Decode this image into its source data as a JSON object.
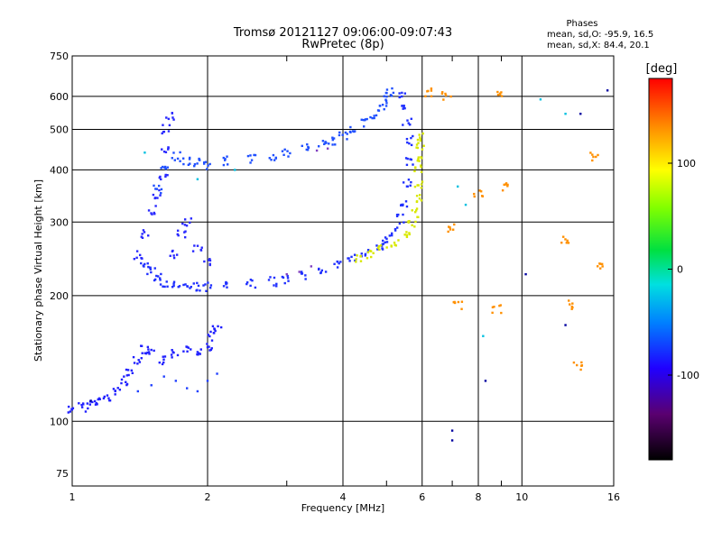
{
  "chart_data": {
    "type": "scatter",
    "title": "Tromsø 20121127 09:06:00-09:07:43",
    "subtitle": "RwPretec (8p)",
    "xlabel": "Frequency [MHz]",
    "ylabel": "Stationary phase Virtual Height [km]",
    "x_scale": "log",
    "y_scale": "log",
    "xlim": [
      1,
      16
    ],
    "ylim": [
      70,
      750
    ],
    "x_ticks": [
      1,
      2,
      4,
      6,
      8,
      10,
      16
    ],
    "x_minor_ticks": [
      3,
      5,
      7,
      9
    ],
    "y_ticks": [
      75,
      100,
      200,
      300,
      400,
      500,
      600,
      750
    ],
    "grid": true,
    "phases_box": {
      "title": "Phases",
      "o_line": "mean, sd,O: -95.9, 16.5",
      "x_line": "mean, sd,X:  84.4, 20.1"
    },
    "colorbar": {
      "label": "[deg]",
      "range": [
        -180,
        180
      ],
      "ticks": [
        -100,
        0,
        100
      ],
      "colormap": "rainbow (black-purple-blue-cyan-green-yellow-orange-red)"
    },
    "traces": [
      {
        "name": "",
        "color": "#2020ff",
        "points": [
          [
            1.0,
            107
          ],
          [
            1.05,
            108
          ],
          [
            1.1,
            110
          ],
          [
            1.15,
            112
          ],
          [
            1.2,
            113
          ],
          [
            1.25,
            118
          ],
          [
            1.3,
            125
          ],
          [
            1.35,
            132
          ],
          [
            1.4,
            140
          ],
          [
            1.45,
            148
          ],
          [
            1.5,
            145
          ],
          [
            1.6,
            140
          ],
          [
            1.7,
            145
          ],
          [
            1.8,
            150
          ],
          [
            1.9,
            148
          ],
          [
            2.0,
            150
          ],
          [
            2.05,
            160
          ],
          [
            2.1,
            168
          ]
        ]
      },
      {
        "name": "",
        "color": "#2040ff",
        "points": [
          [
            1.4,
            118
          ],
          [
            1.5,
            122
          ],
          [
            1.6,
            128
          ],
          [
            1.7,
            125
          ],
          [
            1.8,
            120
          ],
          [
            1.9,
            118
          ],
          [
            2.0,
            125
          ],
          [
            2.1,
            130
          ]
        ]
      },
      {
        "name": "",
        "color": "#2030ff",
        "points": [
          [
            1.45,
            235
          ],
          [
            1.5,
            228
          ],
          [
            1.55,
            220
          ],
          [
            1.6,
            215
          ],
          [
            1.7,
            212
          ],
          [
            1.8,
            211
          ],
          [
            1.9,
            210
          ],
          [
            2.0,
            210
          ],
          [
            2.2,
            211
          ],
          [
            2.5,
            213
          ],
          [
            2.8,
            216
          ],
          [
            3.0,
            219
          ],
          [
            3.3,
            224
          ],
          [
            3.6,
            230
          ],
          [
            3.9,
            238
          ],
          [
            4.2,
            245
          ],
          [
            4.5,
            252
          ],
          [
            4.8,
            262
          ],
          [
            5.0,
            270
          ],
          [
            5.2,
            285
          ],
          [
            5.4,
            305
          ],
          [
            5.5,
            330
          ],
          [
            5.55,
            370
          ],
          [
            5.6,
            420
          ],
          [
            5.6,
            470
          ],
          [
            5.55,
            520
          ],
          [
            5.5,
            560
          ],
          [
            5.45,
            600
          ]
        ]
      },
      {
        "name": "",
        "color": "#2050ff",
        "points": [
          [
            1.55,
            360
          ],
          [
            1.6,
            410
          ],
          [
            1.7,
            430
          ],
          [
            1.8,
            420
          ],
          [
            1.9,
            415
          ],
          [
            2.0,
            410
          ],
          [
            2.2,
            420
          ],
          [
            2.5,
            425
          ],
          [
            2.8,
            432
          ],
          [
            3.0,
            440
          ],
          [
            3.3,
            452
          ],
          [
            3.6,
            462
          ],
          [
            3.8,
            470
          ],
          [
            4.0,
            480
          ],
          [
            4.2,
            495
          ],
          [
            4.5,
            520
          ],
          [
            4.7,
            545
          ],
          [
            4.9,
            565
          ],
          [
            5.0,
            590
          ],
          [
            5.1,
            615
          ]
        ]
      },
      {
        "name": "",
        "color": "#2828ff",
        "points": [
          [
            1.4,
            250
          ],
          [
            1.45,
            280
          ],
          [
            1.5,
            320
          ],
          [
            1.55,
            350
          ],
          [
            1.6,
            380
          ],
          [
            1.6,
            450
          ],
          [
            1.62,
            500
          ],
          [
            1.65,
            540
          ],
          [
            1.68,
            250
          ],
          [
            1.75,
            280
          ],
          [
            1.8,
            300
          ],
          [
            1.9,
            260
          ],
          [
            2.0,
            240
          ]
        ]
      },
      {
        "name": "",
        "color": "#d8e800",
        "points": [
          [
            4.3,
            245
          ],
          [
            4.6,
            250
          ],
          [
            4.9,
            258
          ],
          [
            5.2,
            268
          ],
          [
            5.5,
            280
          ],
          [
            5.7,
            295
          ],
          [
            5.8,
            315
          ],
          [
            5.85,
            340
          ],
          [
            5.9,
            370
          ],
          [
            5.9,
            400
          ],
          [
            5.85,
            430
          ],
          [
            5.95,
            455
          ],
          [
            6.0,
            480
          ]
        ]
      },
      {
        "name": "",
        "color": "#8040c0",
        "points": [
          [
            3.0,
            225
          ],
          [
            3.2,
            228
          ],
          [
            3.4,
            235
          ],
          [
            3.5,
            445
          ],
          [
            3.7,
            450
          ]
        ]
      },
      {
        "name": "",
        "color": "#ff9000",
        "points": [
          [
            6.8,
            600
          ],
          [
            7.0,
            290
          ],
          [
            7.2,
            190
          ],
          [
            8.0,
            350
          ],
          [
            8.8,
            185
          ],
          [
            9.2,
            365
          ],
          [
            12.5,
            270
          ],
          [
            13.0,
            190
          ],
          [
            13.3,
            135
          ],
          [
            14.5,
            430
          ],
          [
            15.0,
            235
          ],
          [
            6.2,
            615
          ],
          [
            9.0,
            610
          ]
        ]
      },
      {
        "name": "",
        "color": "#00c0e0",
        "points": [
          [
            1.45,
            440
          ],
          [
            1.9,
            380
          ],
          [
            2.3,
            400
          ],
          [
            7.2,
            365
          ],
          [
            8.2,
            160
          ],
          [
            12.5,
            545
          ],
          [
            7.5,
            330
          ],
          [
            11.0,
            590
          ]
        ]
      },
      {
        "name": "",
        "color": "#0000a0",
        "points": [
          [
            1.1,
            112
          ],
          [
            7.0,
            95
          ],
          [
            7.0,
            90
          ],
          [
            8.3,
            125
          ],
          [
            12.5,
            170
          ],
          [
            13.5,
            545
          ],
          [
            15.5,
            620
          ],
          [
            10.2,
            225
          ]
        ]
      }
    ]
  }
}
